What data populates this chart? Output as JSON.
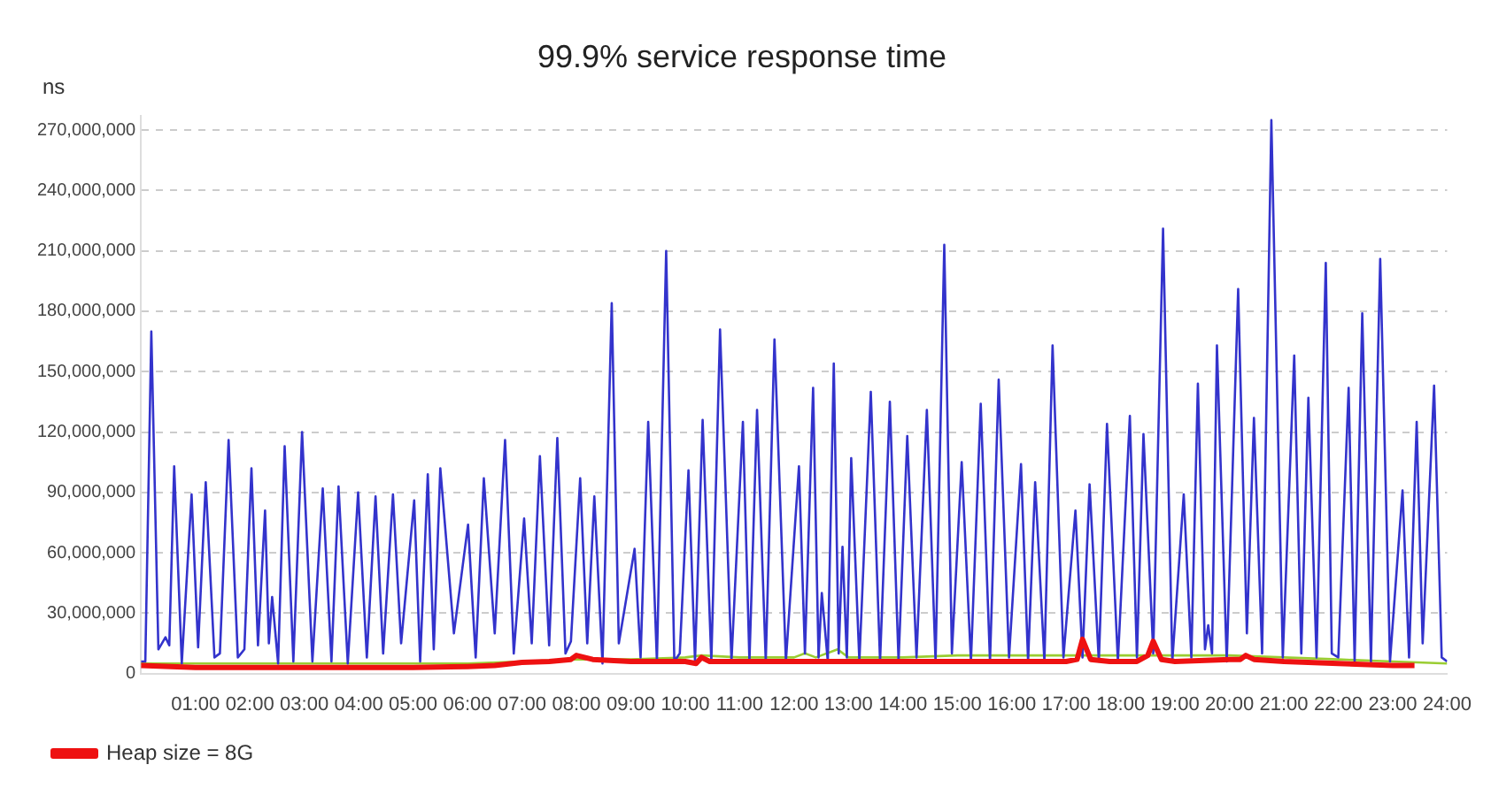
{
  "chart_data": {
    "type": "line",
    "title": "99.9% service response time",
    "ylabel": "ns",
    "xlim": [
      0,
      24
    ],
    "ylim": [
      0,
      277000000
    ],
    "xticks": [
      {
        "value": 1,
        "label": "01:00"
      },
      {
        "value": 2,
        "label": "02:00"
      },
      {
        "value": 3,
        "label": "03:00"
      },
      {
        "value": 4,
        "label": "04:00"
      },
      {
        "value": 5,
        "label": "05:00"
      },
      {
        "value": 6,
        "label": "06:00"
      },
      {
        "value": 7,
        "label": "07:00"
      },
      {
        "value": 8,
        "label": "08:00"
      },
      {
        "value": 9,
        "label": "09:00"
      },
      {
        "value": 10,
        "label": "10:00"
      },
      {
        "value": 11,
        "label": "11:00"
      },
      {
        "value": 12,
        "label": "12:00"
      },
      {
        "value": 13,
        "label": "13:00"
      },
      {
        "value": 14,
        "label": "14:00"
      },
      {
        "value": 15,
        "label": "15:00"
      },
      {
        "value": 16,
        "label": "16:00"
      },
      {
        "value": 17,
        "label": "17:00"
      },
      {
        "value": 18,
        "label": "18:00"
      },
      {
        "value": 19,
        "label": "19:00"
      },
      {
        "value": 20,
        "label": "20:00"
      },
      {
        "value": 21,
        "label": "21:00"
      },
      {
        "value": 22,
        "label": "22:00"
      },
      {
        "value": 23,
        "label": "23:00"
      },
      {
        "value": 24,
        "label": "24:00"
      }
    ],
    "yticks": [
      {
        "value": 0,
        "label": "0"
      },
      {
        "value": 30000000,
        "label": "30,000,000"
      },
      {
        "value": 60000000,
        "label": "60,000,000"
      },
      {
        "value": 90000000,
        "label": "90,000,000"
      },
      {
        "value": 120000000,
        "label": "120,000,000"
      },
      {
        "value": 150000000,
        "label": "150,000,000"
      },
      {
        "value": 180000000,
        "label": "180,000,000"
      },
      {
        "value": 210000000,
        "label": "210,000,000"
      },
      {
        "value": 240000000,
        "label": "240,000,000"
      },
      {
        "value": 270000000,
        "label": "270,000,000"
      }
    ],
    "grid": "y",
    "legend": "bottom left",
    "marker": "none",
    "line_style": "solid",
    "series": [
      {
        "color": "#9acd32",
        "x": [
          0,
          3,
          6,
          7,
          8,
          9,
          10,
          10.3,
          11,
          12,
          12.2,
          12.4,
          12.8,
          13,
          14,
          15,
          16,
          17,
          18,
          19,
          20,
          21,
          22,
          23,
          24
        ],
        "values": [
          5000000,
          5000000,
          5000000,
          6000000,
          7000000,
          7000000,
          8000000,
          9000000,
          8000000,
          8000000,
          10000000,
          8000000,
          12000000,
          8000000,
          8000000,
          9000000,
          9000000,
          9000000,
          9000000,
          9000000,
          9000000,
          8000000,
          7000000,
          6000000,
          5000000
        ]
      },
      {
        "color": "#3333cc",
        "x": [
          0,
          0.08,
          0.19,
          0.32,
          0.45,
          0.52,
          0.61,
          0.75,
          0.93,
          1.05,
          1.19,
          1.35,
          1.45,
          1.61,
          1.78,
          1.9,
          2.03,
          2.15,
          2.28,
          2.35,
          2.41,
          2.52,
          2.64,
          2.8,
          2.96,
          3.15,
          3.34,
          3.5,
          3.63,
          3.8,
          3.99,
          4.15,
          4.31,
          4.45,
          4.63,
          4.78,
          5.02,
          5.13,
          5.27,
          5.38,
          5.5,
          5.75,
          6.01,
          6.15,
          6.3,
          6.5,
          6.69,
          6.85,
          7.04,
          7.18,
          7.33,
          7.5,
          7.65,
          7.8,
          7.9,
          8.07,
          8.2,
          8.33,
          8.48,
          8.65,
          8.78,
          9.07,
          9.18,
          9.32,
          9.48,
          9.65,
          9.8,
          9.9,
          10.06,
          10.18,
          10.32,
          10.48,
          10.64,
          10.85,
          11.06,
          11.18,
          11.32,
          11.48,
          11.64,
          11.85,
          12.09,
          12.2,
          12.35,
          12.45,
          12.51,
          12.62,
          12.73,
          12.82,
          12.89,
          12.97,
          13.05,
          13.2,
          13.41,
          13.58,
          13.76,
          13.92,
          14.08,
          14.25,
          14.44,
          14.6,
          14.76,
          14.9,
          15.08,
          15.25,
          15.43,
          15.6,
          15.76,
          15.95,
          16.17,
          16.3,
          16.43,
          16.6,
          16.75,
          16.95,
          17.17,
          17.3,
          17.43,
          17.6,
          17.75,
          17.95,
          18.17,
          18.3,
          18.42,
          18.6,
          18.78,
          18.95,
          19.16,
          19.3,
          19.42,
          19.55,
          19.61,
          19.68,
          19.77,
          19.95,
          20.16,
          20.32,
          20.45,
          20.6,
          20.77,
          20.98,
          21.19,
          21.32,
          21.45,
          21.6,
          21.77,
          21.88,
          22,
          22.19,
          22.3,
          22.44,
          22.6,
          22.77,
          22.95,
          23.18,
          23.3,
          23.44,
          23.55,
          23.76,
          23.9,
          24
        ],
        "values": [
          6000000,
          6000000,
          170000000,
          12000000,
          18000000,
          14000000,
          103000000,
          5000000,
          89000000,
          13000000,
          95000000,
          8000000,
          10000000,
          116000000,
          8000000,
          12000000,
          102000000,
          14000000,
          81000000,
          15000000,
          38000000,
          5000000,
          113000000,
          6000000,
          120000000,
          6000000,
          92000000,
          6000000,
          93000000,
          5000000,
          90000000,
          8000000,
          88000000,
          10000000,
          89000000,
          15000000,
          86000000,
          6000000,
          99000000,
          12000000,
          102000000,
          20000000,
          74000000,
          8000000,
          97000000,
          20000000,
          116000000,
          10000000,
          77000000,
          15000000,
          108000000,
          14000000,
          117000000,
          10000000,
          16000000,
          97000000,
          15000000,
          88000000,
          5000000,
          184000000,
          15000000,
          62000000,
          8000000,
          125000000,
          6000000,
          210000000,
          6000000,
          10000000,
          101000000,
          6000000,
          126000000,
          6000000,
          171000000,
          6000000,
          125000000,
          6000000,
          131000000,
          6000000,
          166000000,
          6000000,
          103000000,
          10000000,
          142000000,
          8000000,
          40000000,
          6000000,
          154000000,
          10000000,
          63000000,
          8000000,
          107000000,
          6000000,
          140000000,
          6000000,
          135000000,
          6000000,
          118000000,
          8000000,
          131000000,
          6000000,
          213000000,
          10000000,
          105000000,
          6000000,
          134000000,
          6000000,
          146000000,
          8000000,
          104000000,
          6000000,
          95000000,
          6000000,
          163000000,
          8000000,
          81000000,
          8000000,
          94000000,
          6000000,
          124000000,
          6000000,
          128000000,
          8000000,
          119000000,
          10000000,
          221000000,
          6000000,
          89000000,
          8000000,
          144000000,
          12000000,
          24000000,
          10000000,
          163000000,
          6000000,
          191000000,
          20000000,
          127000000,
          10000000,
          275000000,
          8000000,
          158000000,
          10000000,
          137000000,
          8000000,
          204000000,
          10000000,
          8000000,
          142000000,
          6000000,
          179000000,
          6000000,
          206000000,
          6000000,
          91000000,
          8000000,
          125000000,
          15000000,
          143000000,
          8000000,
          6000000
        ]
      },
      {
        "name": "Heap size = 8G",
        "color": "#ee1111",
        "x": [
          0,
          1,
          2,
          3,
          4,
          5,
          6,
          6.5,
          7,
          7.5,
          7.9,
          8,
          8.3,
          9,
          10,
          10.2,
          10.3,
          10.45,
          11,
          12,
          13,
          14,
          15,
          16,
          17,
          17.2,
          17.3,
          17.45,
          17.8,
          18.3,
          18.5,
          18.6,
          18.75,
          19,
          20,
          20.2,
          20.3,
          20.45,
          21,
          22,
          23,
          23.4
        ],
        "values": [
          4000000,
          3000000,
          3000000,
          3000000,
          3000000,
          3000000,
          3500000,
          4000000,
          5500000,
          6000000,
          7000000,
          9000000,
          7000000,
          6000000,
          6000000,
          5000000,
          8000000,
          6000000,
          6000000,
          6000000,
          6000000,
          6000000,
          6000000,
          6000000,
          6000000,
          7000000,
          17000000,
          7000000,
          6000000,
          6000000,
          9000000,
          16000000,
          7000000,
          6000000,
          7000000,
          7000000,
          9000000,
          7000000,
          6000000,
          5000000,
          4000000,
          4000000
        ]
      }
    ]
  }
}
